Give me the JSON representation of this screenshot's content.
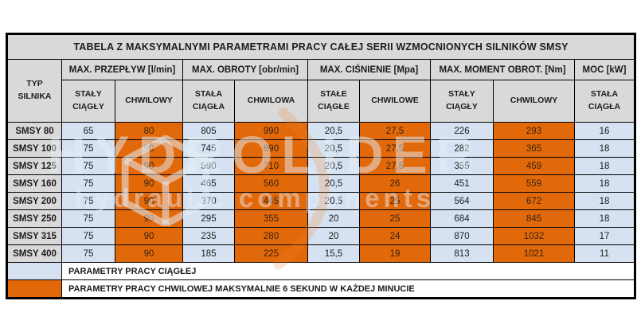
{
  "chart_data": {
    "type": "table",
    "title": "TABELA Z MAKSYMALNYMI PARAMETRAMI PRACY CAŁEJ SERII WZMOCNIONYCH SILNIKÓW SMSY",
    "row_header": "TYP\nSILNIKA",
    "column_groups": [
      {
        "label": "MAX. PRZEPŁYW [l/min]",
        "sub": [
          "STAŁY\nCIĄGŁY",
          "CHWILOWY"
        ]
      },
      {
        "label": "MAX. OBROTY [obr/min]",
        "sub": [
          "STAŁA\nCIĄGŁA",
          "CHWILOWA"
        ]
      },
      {
        "label": "MAX. CIŚNIENIE [Mpa]",
        "sub": [
          "STAŁE\nCIĄGŁE",
          "CHWILOWE"
        ]
      },
      {
        "label": "MAX. MOMENT OBROT. [Nm]",
        "sub": [
          "STAŁY\nCIĄGŁY",
          "CHWILOWY"
        ]
      },
      {
        "label": "MOC [kW]",
        "sub": [
          "STAŁA\nCIĄGŁA"
        ]
      }
    ],
    "rows": [
      {
        "type": "SMSY 80",
        "values": [
          "65",
          "80",
          "805",
          "990",
          "20,5",
          "27,5",
          "226",
          "293",
          "16"
        ]
      },
      {
        "type": "SMSY 100",
        "values": [
          "75",
          "90",
          "745",
          "890",
          "20,5",
          "27,5",
          "282",
          "365",
          "18"
        ]
      },
      {
        "type": "SMSY 125",
        "values": [
          "75",
          "90",
          "590",
          "710",
          "20,5",
          "27,5",
          "355",
          "459",
          "18"
        ]
      },
      {
        "type": "SMSY 160",
        "values": [
          "75",
          "90",
          "465",
          "560",
          "20,5",
          "26",
          "451",
          "559",
          "18"
        ]
      },
      {
        "type": "SMSY 200",
        "values": [
          "75",
          "90",
          "370",
          "445",
          "20,5",
          "25",
          "564",
          "672",
          "18"
        ]
      },
      {
        "type": "SMSY 250",
        "values": [
          "75",
          "90",
          "295",
          "355",
          "20",
          "25",
          "684",
          "845",
          "18"
        ]
      },
      {
        "type": "SMSY 315",
        "values": [
          "75",
          "90",
          "235",
          "280",
          "20",
          "24",
          "870",
          "1032",
          "17"
        ]
      },
      {
        "type": "SMSY 400",
        "values": [
          "75",
          "90",
          "185",
          "225",
          "15,5",
          "19",
          "813",
          "1021",
          "11"
        ]
      }
    ],
    "legend": [
      {
        "swatch": "continuous",
        "text": "PARAMETRY PRACY CIĄGŁEJ"
      },
      {
        "swatch": "momentary",
        "text": "PARAMETRY PRACY CHWILOWEJ MAKSYMALNIE 6 SEKUND W KAŻDEJ MINUCIE"
      }
    ]
  },
  "colors": {
    "continuous_fill": "#D6E2F1",
    "momentary_fill": "#E2690A",
    "header_fill": "#D9D9D9",
    "border": "#000000",
    "page_background": "#FFFFFF"
  },
  "watermark": {
    "line1": "HYDROLIDER",
    "line2": "hydraulic components"
  }
}
